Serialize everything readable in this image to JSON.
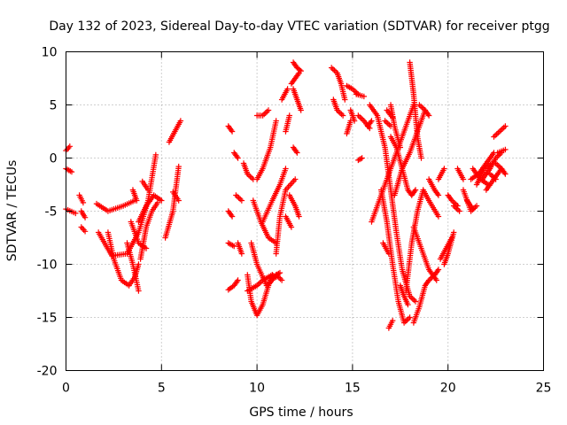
{
  "chart_data": {
    "type": "scatter",
    "title": "Day 132 of 2023, Sidereal Day-to-day VTEC variation (SDTVAR) for receiver ptgg",
    "xlabel": "GPS time / hours",
    "ylabel": "SDTVAR / TECUs",
    "xlim": [
      0,
      25
    ],
    "ylim": [
      -20,
      10
    ],
    "xticks": [
      "0",
      "5",
      "10",
      "15",
      "20",
      "25"
    ],
    "yticks": [
      "10",
      "5",
      "0",
      "-5",
      "-10",
      "-15",
      "-20"
    ],
    "grid": true,
    "legend": "none",
    "marker": "+",
    "color": "#ff0000",
    "series": [
      {
        "x": [
          0.0,
          0.2
        ],
        "y": [
          0.7,
          1.1
        ]
      },
      {
        "x": [
          0.0,
          0.3
        ],
        "y": [
          -1.0,
          -1.3
        ]
      },
      {
        "x": [
          0.0,
          0.5
        ],
        "y": [
          -4.8,
          -5.2
        ]
      },
      {
        "x": [
          0.7,
          0.9
        ],
        "y": [
          -3.5,
          -4.2
        ]
      },
      {
        "x": [
          0.8,
          1.0
        ],
        "y": [
          -5.0,
          -5.6
        ]
      },
      {
        "x": [
          0.8,
          1.0
        ],
        "y": [
          -6.5,
          -6.9
        ]
      },
      {
        "x": [
          1.7,
          2.4,
          3.2,
          3.8,
          4.3,
          4.7
        ],
        "y": [
          -7.0,
          -9.2,
          -9.0,
          -7.0,
          -4.0,
          0.3
        ]
      },
      {
        "x": [
          1.6,
          2.2,
          3.0,
          3.6
        ],
        "y": [
          -4.3,
          -5.0,
          -4.5,
          -4.0
        ]
      },
      {
        "x": [
          2.2,
          2.5,
          2.9,
          3.3,
          3.6,
          3.8
        ],
        "y": [
          -7.0,
          -9.5,
          -11.5,
          -12.0,
          -11.2,
          -10.0
        ]
      },
      {
        "x": [
          3.2,
          3.5,
          3.8
        ],
        "y": [
          -8.0,
          -10.0,
          -12.5
        ]
      },
      {
        "x": [
          3.5,
          3.7
        ],
        "y": [
          -3.0,
          -4.0
        ]
      },
      {
        "x": [
          3.8,
          4.2,
          4.6,
          5.0
        ],
        "y": [
          -6.0,
          -4.5,
          -3.5,
          -4.0
        ]
      },
      {
        "x": [
          3.4,
          3.8,
          4.2
        ],
        "y": [
          -6.0,
          -8.0,
          -8.5
        ]
      },
      {
        "x": [
          4.0,
          4.3
        ],
        "y": [
          -2.2,
          -3.0
        ]
      },
      {
        "x": [
          3.9,
          4.2,
          4.5,
          4.8
        ],
        "y": [
          -9.5,
          -6.5,
          -5.0,
          -4.2
        ]
      },
      {
        "x": [
          5.4,
          5.7,
          6.0
        ],
        "y": [
          1.5,
          2.5,
          3.5
        ]
      },
      {
        "x": [
          5.2,
          5.6,
          5.9
        ],
        "y": [
          -7.5,
          -5.0,
          -0.8
        ]
      },
      {
        "x": [
          5.6,
          5.9
        ],
        "y": [
          -3.2,
          -4.0
        ]
      },
      {
        "x": [
          8.5,
          8.7
        ],
        "y": [
          3.0,
          2.5
        ]
      },
      {
        "x": [
          8.5,
          8.7
        ],
        "y": [
          -5.0,
          -5.5
        ]
      },
      {
        "x": [
          8.5,
          8.8
        ],
        "y": [
          -8.0,
          -8.3
        ]
      },
      {
        "x": [
          8.5,
          8.8,
          9.0
        ],
        "y": [
          -12.4,
          -12.0,
          -11.5
        ]
      },
      {
        "x": [
          8.8,
          9.0
        ],
        "y": [
          0.5,
          0.0
        ]
      },
      {
        "x": [
          8.9,
          9.2
        ],
        "y": [
          -3.5,
          -4.0
        ]
      },
      {
        "x": [
          9.0,
          9.2
        ],
        "y": [
          -8.0,
          -9.0
        ]
      },
      {
        "x": [
          9.3,
          9.5,
          9.8
        ],
        "y": [
          -0.5,
          -1.5,
          -2.0
        ]
      },
      {
        "x": [
          9.5,
          9.7,
          10.0,
          10.3,
          10.6,
          10.8
        ],
        "y": [
          -11.0,
          -13.5,
          -14.8,
          -13.8,
          -12.0,
          -11.0
        ]
      },
      {
        "x": [
          9.5,
          10.0,
          10.3,
          10.8,
          11.0
        ],
        "y": [
          -12.5,
          -12.0,
          -11.5,
          -11.0,
          -11.2
        ]
      },
      {
        "x": [
          9.7,
          10.0,
          10.5,
          10.8,
          11.0,
          11.2
        ],
        "y": [
          -8.0,
          -10.0,
          -12.0,
          -11.5,
          -11.0,
          -10.8
        ]
      },
      {
        "x": [
          9.8,
          10.2,
          10.6,
          11.0
        ],
        "y": [
          -4.0,
          -6.0,
          -7.5,
          -8.0
        ]
      },
      {
        "x": [
          10.0,
          10.3,
          10.7,
          11.0
        ],
        "y": [
          -2.0,
          -1.0,
          1.0,
          3.5
        ]
      },
      {
        "x": [
          10.0,
          10.3,
          10.6
        ],
        "y": [
          4.0,
          4.0,
          4.5
        ]
      },
      {
        "x": [
          10.3,
          10.8,
          11.2,
          11.5
        ],
        "y": [
          -6.0,
          -4.0,
          -2.5,
          -1.0
        ]
      },
      {
        "x": [
          11.0,
          11.3
        ],
        "y": [
          -11.0,
          -11.5
        ]
      },
      {
        "x": [
          11.0,
          11.2,
          11.5,
          12.0
        ],
        "y": [
          -9.0,
          -5.5,
          -3.0,
          -2.0
        ]
      },
      {
        "x": [
          11.3,
          11.6
        ],
        "y": [
          5.5,
          6.5
        ]
      },
      {
        "x": [
          11.5,
          11.7
        ],
        "y": [
          2.5,
          4.0
        ]
      },
      {
        "x": [
          11.5,
          11.8
        ],
        "y": [
          -5.5,
          -6.5
        ]
      },
      {
        "x": [
          11.7,
          12.0,
          12.2
        ],
        "y": [
          -3.5,
          -4.5,
          -5.5
        ]
      },
      {
        "x": [
          11.8,
          12.0,
          12.2
        ],
        "y": [
          7.0,
          7.5,
          8.0
        ]
      },
      {
        "x": [
          11.9,
          12.1,
          12.3
        ],
        "y": [
          6.5,
          5.5,
          4.5
        ]
      },
      {
        "x": [
          11.9,
          12.1
        ],
        "y": [
          1.0,
          0.5
        ]
      },
      {
        "x": [
          11.9,
          12.1,
          12.3
        ],
        "y": [
          9.0,
          8.5,
          8.2
        ]
      },
      {
        "x": [
          13.9,
          14.2,
          14.4,
          14.6
        ],
        "y": [
          8.5,
          8.0,
          7.0,
          5.5
        ]
      },
      {
        "x": [
          14.0,
          14.2,
          14.5
        ],
        "y": [
          5.5,
          4.5,
          4.0
        ]
      },
      {
        "x": [
          14.7,
          15.0,
          15.3
        ],
        "y": [
          6.8,
          6.5,
          6.0
        ]
      },
      {
        "x": [
          14.7,
          14.9
        ],
        "y": [
          2.3,
          3.5
        ]
      },
      {
        "x": [
          14.9,
          15.1
        ],
        "y": [
          4.5,
          3.5
        ]
      },
      {
        "x": [
          15.2,
          15.6
        ],
        "y": [
          6.0,
          5.8
        ]
      },
      {
        "x": [
          15.3,
          15.6,
          15.9
        ],
        "y": [
          4.0,
          3.5,
          2.8
        ]
      },
      {
        "x": [
          15.3,
          15.5
        ],
        "y": [
          -0.2,
          0.0
        ]
      },
      {
        "x": [
          15.8,
          16.0
        ],
        "y": [
          3.0,
          3.5
        ]
      },
      {
        "x": [
          15.9,
          16.3,
          16.7,
          17.0,
          17.3,
          17.6,
          18.0,
          18.3
        ],
        "y": [
          5.0,
          4.0,
          1.0,
          -3.0,
          -7.0,
          -10.5,
          -13.0,
          -13.5
        ]
      },
      {
        "x": [
          16.0,
          16.3,
          16.6,
          17.0,
          17.4,
          17.8,
          18.2
        ],
        "y": [
          -6.0,
          -4.5,
          -3.0,
          -1.0,
          1.0,
          3.0,
          5.0
        ]
      },
      {
        "x": [
          16.5,
          16.8,
          17.1,
          17.4,
          17.7,
          18.0
        ],
        "y": [
          -3.0,
          -6.0,
          -10.0,
          -13.5,
          -15.5,
          -15.0
        ]
      },
      {
        "x": [
          16.6,
          16.9
        ],
        "y": [
          -8.0,
          -9.0
        ]
      },
      {
        "x": [
          16.7,
          17.0
        ],
        "y": [
          3.5,
          3.0
        ]
      },
      {
        "x": [
          16.8,
          17.1
        ],
        "y": [
          4.5,
          3.8
        ]
      },
      {
        "x": [
          16.9,
          17.1
        ],
        "y": [
          -16.0,
          -15.3
        ]
      },
      {
        "x": [
          17.0,
          17.3,
          17.6,
          17.9,
          18.1,
          18.3
        ],
        "y": [
          2.0,
          1.0,
          -1.0,
          -3.0,
          -3.5,
          -3.0
        ]
      },
      {
        "x": [
          17.0,
          17.2,
          17.5
        ],
        "y": [
          5.0,
          3.0,
          1.0
        ]
      },
      {
        "x": [
          17.2,
          17.6,
          18.0,
          18.4,
          18.8
        ],
        "y": [
          -3.5,
          -1.0,
          0.5,
          2.5,
          4.5
        ]
      },
      {
        "x": [
          17.5,
          17.7,
          17.9
        ],
        "y": [
          -12.0,
          -13.0,
          -13.8
        ]
      },
      {
        "x": [
          17.8,
          18.1,
          18.4,
          18.7,
          19.0,
          19.5
        ],
        "y": [
          -12.5,
          -8.0,
          -5.0,
          -3.0,
          -4.0,
          -5.5
        ]
      },
      {
        "x": [
          18.0,
          18.2,
          18.4,
          18.6
        ],
        "y": [
          9.0,
          6.0,
          2.0,
          0.0
        ]
      },
      {
        "x": [
          18.2,
          18.5,
          18.8,
          19.0,
          19.3,
          19.5
        ],
        "y": [
          -15.5,
          -14.0,
          -12.0,
          -11.5,
          -11.0,
          -10.5
        ]
      },
      {
        "x": [
          18.2,
          18.6,
          19.0,
          19.4
        ],
        "y": [
          -6.5,
          -8.5,
          -10.5,
          -11.5
        ]
      },
      {
        "x": [
          18.5,
          18.8,
          19.0
        ],
        "y": [
          5.0,
          4.5,
          4.0
        ]
      },
      {
        "x": [
          19.0,
          19.3,
          19.5
        ],
        "y": [
          -2.0,
          -3.0,
          -3.5
        ]
      },
      {
        "x": [
          19.5,
          19.8
        ],
        "y": [
          -2.0,
          -1.0
        ]
      },
      {
        "x": [
          19.6,
          19.9,
          20.2
        ],
        "y": [
          -9.5,
          -8.5,
          -7.5
        ]
      },
      {
        "x": [
          19.8,
          20.0,
          20.3
        ],
        "y": [
          -10.0,
          -9.0,
          -7.0
        ]
      },
      {
        "x": [
          20.0,
          20.2,
          20.5
        ],
        "y": [
          -3.5,
          -4.0,
          -4.5
        ]
      },
      {
        "x": [
          20.3,
          20.6
        ],
        "y": [
          -4.5,
          -5.0
        ]
      },
      {
        "x": [
          20.5,
          20.8
        ],
        "y": [
          -1.0,
          -2.0
        ]
      },
      {
        "x": [
          20.8,
          21.2,
          21.5
        ],
        "y": [
          -3.0,
          -5.0,
          -4.5
        ]
      },
      {
        "x": [
          21.0,
          21.3
        ],
        "y": [
          -4.0,
          -4.8
        ]
      },
      {
        "x": [
          21.2,
          21.6,
          22.0,
          22.4
        ],
        "y": [
          -2.0,
          -1.5,
          -0.5,
          0.5
        ]
      },
      {
        "x": [
          21.3,
          21.7,
          22.1
        ],
        "y": [
          -1.0,
          -2.0,
          -2.5
        ]
      },
      {
        "x": [
          21.5,
          21.9,
          22.3
        ],
        "y": [
          -2.5,
          -1.0,
          -0.5
        ]
      },
      {
        "x": [
          21.8,
          22.2,
          22.5,
          22.8
        ],
        "y": [
          -2.0,
          -1.0,
          0.0,
          0.5
        ]
      },
      {
        "x": [
          22.0,
          22.4,
          22.8
        ],
        "y": [
          -3.0,
          -2.0,
          -1.0
        ]
      },
      {
        "x": [
          22.2,
          22.5
        ],
        "y": [
          -1.5,
          -2.0
        ]
      },
      {
        "x": [
          22.4,
          22.7,
          23.0
        ],
        "y": [
          2.0,
          2.5,
          3.0
        ]
      },
      {
        "x": [
          22.5,
          22.8,
          23.0
        ],
        "y": [
          -0.5,
          -1.0,
          -1.5
        ]
      },
      {
        "x": [
          22.6,
          23.0
        ],
        "y": [
          0.5,
          0.8
        ]
      }
    ]
  }
}
